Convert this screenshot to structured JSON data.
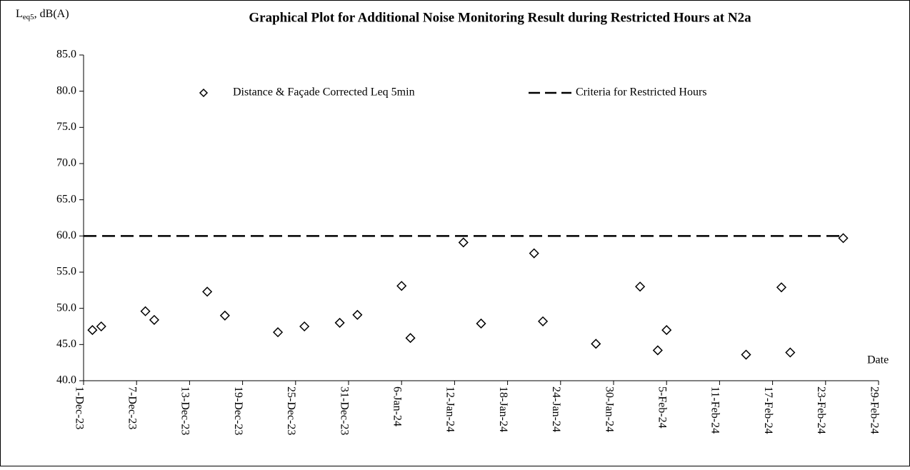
{
  "chart_data": {
    "type": "scatter",
    "title": "Graphical Plot for Additional Noise Monitoring Result during Restricted Hours at N2a",
    "y_label": [
      "L",
      "eq5",
      ", dB(A)"
    ],
    "x_label": "Date",
    "xlim": [
      "2023-12-01",
      "2024-02-29"
    ],
    "xticks": [
      {
        "value": "2023-12-01",
        "label": "1-Dec-23"
      },
      {
        "value": "2023-12-07",
        "label": "7-Dec-23"
      },
      {
        "value": "2023-12-13",
        "label": "13-Dec-23"
      },
      {
        "value": "2023-12-19",
        "label": "19-Dec-23"
      },
      {
        "value": "2023-12-25",
        "label": "25-Dec-23"
      },
      {
        "value": "2023-12-31",
        "label": "31-Dec-23"
      },
      {
        "value": "2024-01-06",
        "label": "6-Jan-24"
      },
      {
        "value": "2024-01-12",
        "label": "12-Jan-24"
      },
      {
        "value": "2024-01-18",
        "label": "18-Jan-24"
      },
      {
        "value": "2024-01-24",
        "label": "24-Jan-24"
      },
      {
        "value": "2024-01-30",
        "label": "30-Jan-24"
      },
      {
        "value": "2024-02-05",
        "label": "5-Feb-24"
      },
      {
        "value": "2024-02-11",
        "label": "11-Feb-24"
      },
      {
        "value": "2024-02-17",
        "label": "17-Feb-24"
      },
      {
        "value": "2024-02-23",
        "label": "23-Feb-24"
      },
      {
        "value": "2024-02-29",
        "label": "29-Feb-24"
      }
    ],
    "ylim": [
      40,
      85
    ],
    "yticks": [
      {
        "value": 40,
        "label": "40.0"
      },
      {
        "value": 45,
        "label": "45.0"
      },
      {
        "value": 50,
        "label": "50.0"
      },
      {
        "value": 55,
        "label": "55.0"
      },
      {
        "value": 60,
        "label": "60.0"
      },
      {
        "value": 65,
        "label": "65.0"
      },
      {
        "value": 70,
        "label": "70.0"
      },
      {
        "value": 75,
        "label": "75.0"
      },
      {
        "value": 80,
        "label": "80.0"
      },
      {
        "value": 85,
        "label": "85.0"
      }
    ],
    "grid": false,
    "series": [
      {
        "name": "Distance & Façade Corrected Leq 5min",
        "type": "scatter",
        "color": "#000000",
        "x": [
          "2023-12-02",
          "2023-12-03",
          "2023-12-08",
          "2023-12-09",
          "2023-12-15",
          "2023-12-17",
          "2023-12-23",
          "2023-12-26",
          "2023-12-30",
          "2024-01-01",
          "2024-01-06",
          "2024-01-07",
          "2024-01-13",
          "2024-01-15",
          "2024-01-21",
          "2024-01-22",
          "2024-01-28",
          "2024-02-02",
          "2024-02-04",
          "2024-02-05",
          "2024-02-14",
          "2024-02-18",
          "2024-02-19",
          "2024-02-25"
        ],
        "values": [
          47.0,
          47.5,
          49.6,
          48.4,
          52.3,
          49.0,
          46.7,
          47.5,
          48.0,
          49.1,
          53.1,
          45.9,
          59.1,
          47.9,
          57.6,
          48.2,
          45.1,
          53.0,
          44.2,
          47.0,
          43.6,
          52.9,
          43.9,
          59.7
        ]
      },
      {
        "name": "Criteria for Restricted Hours",
        "type": "line",
        "dashed": true,
        "color": "#000000",
        "x": [
          "2023-12-01",
          "2024-02-25"
        ],
        "values": [
          60,
          60
        ]
      }
    ]
  }
}
